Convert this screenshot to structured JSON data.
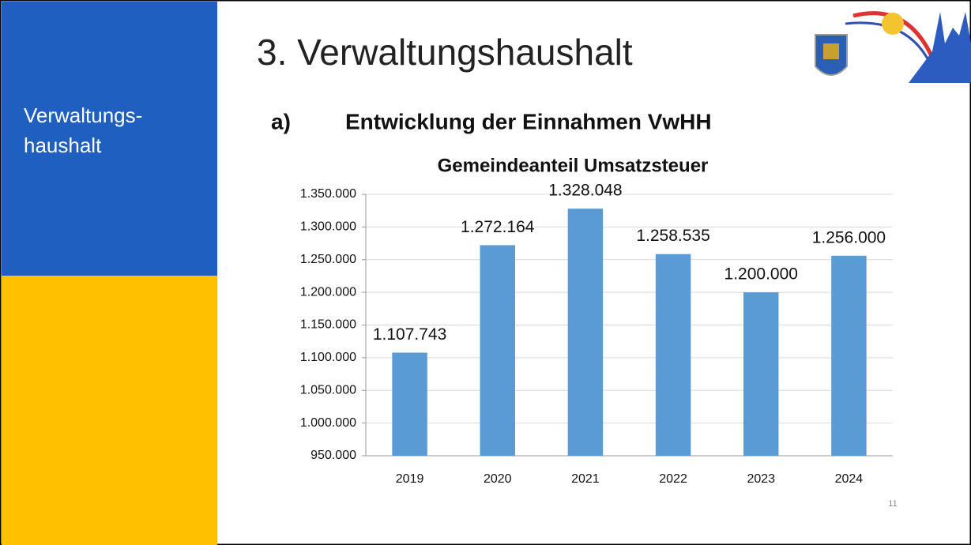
{
  "sidebar": {
    "label_lines": [
      "Verwaltungs-",
      "haushalt"
    ]
  },
  "slide": {
    "title": "3. Verwaltungshaushalt",
    "section_marker": "a)",
    "section_title": "Entwicklung der Einnahmen VwHH",
    "page_number": 11
  },
  "chart_data": {
    "type": "bar",
    "title": "Gemeindeanteil Umsatzsteuer",
    "categories": [
      "2019",
      "2020",
      "2021",
      "2022",
      "2023",
      "2024"
    ],
    "values": [
      1107743,
      1272164,
      1328048,
      1258535,
      1200000,
      1256000
    ],
    "value_labels": [
      "1.107.743",
      "1.272.164",
      "1.328.048",
      "1.258.535",
      "1.200.000",
      "1.256.000"
    ],
    "color": "#5b9bd5",
    "ylim": [
      950000,
      1350000
    ],
    "yticks": [
      {
        "value": 950000,
        "label": "950.000"
      },
      {
        "value": 1000000,
        "label": "1.000.000"
      },
      {
        "value": 1050000,
        "label": "1.050.000"
      },
      {
        "value": 1100000,
        "label": "1.100.000"
      },
      {
        "value": 1150000,
        "label": "1.150.000"
      },
      {
        "value": 1200000,
        "label": "1.200.000"
      },
      {
        "value": 1250000,
        "label": "1.250.000"
      },
      {
        "value": 1300000,
        "label": "1.300.000"
      },
      {
        "value": 1350000,
        "label": "1.350.000"
      }
    ],
    "grid": true
  }
}
